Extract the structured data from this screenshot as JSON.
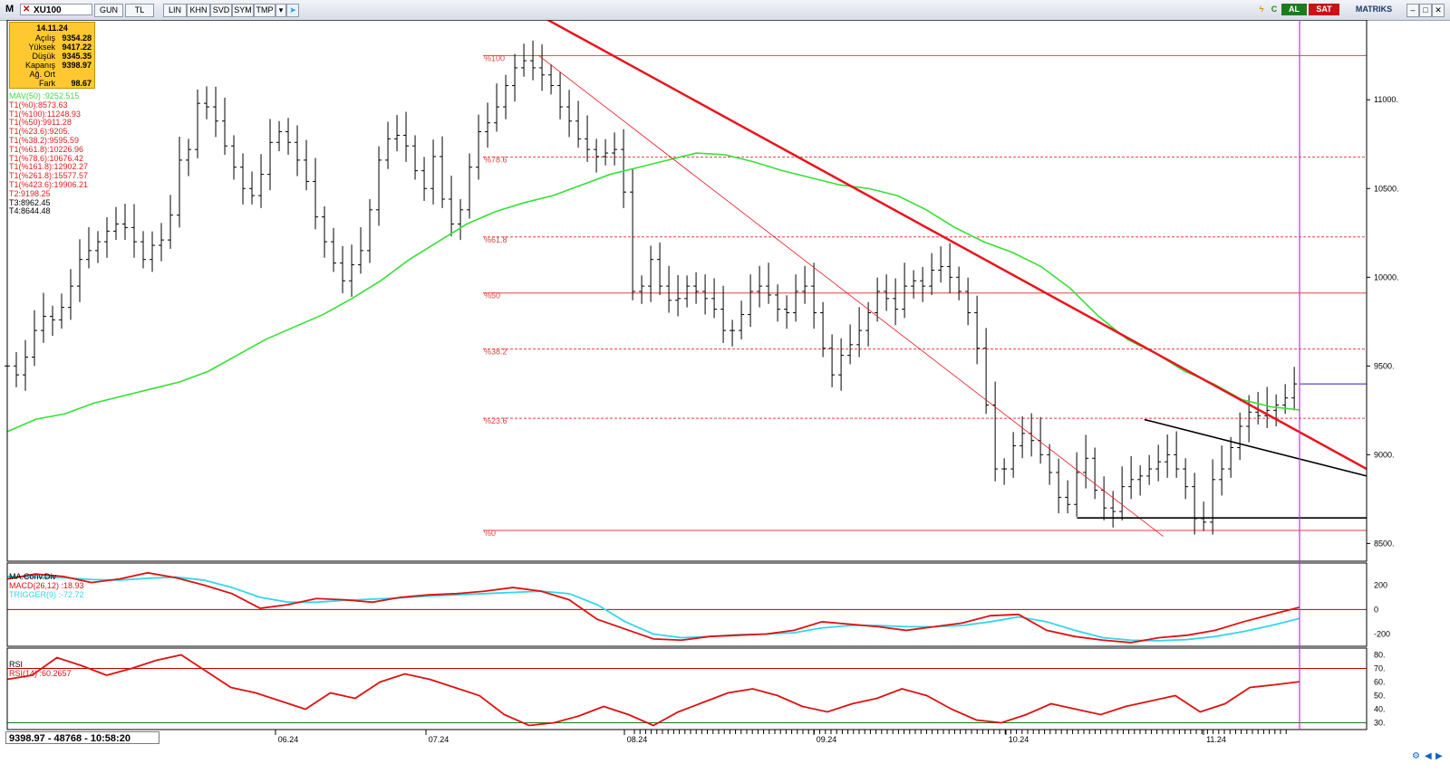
{
  "toolbar": {
    "m_label": "M",
    "symbol": "XU100",
    "buttons": [
      "GUN",
      "TL",
      "LIN",
      "KHN",
      "SVD",
      "SYM",
      "TMP"
    ],
    "al_label": "AL",
    "sat_label": "SAT",
    "matriks_label": "MATRIKS"
  },
  "infobox": {
    "date": "14.11.24",
    "rows": [
      {
        "label": "Açılış",
        "value": "9354.28"
      },
      {
        "label": "Yüksek",
        "value": "9417.22"
      },
      {
        "label": "Düşük",
        "value": "9345.35"
      },
      {
        "label": "Kapanış",
        "value": "9398.97"
      },
      {
        "label": "Ağ. Ort",
        "value": ""
      },
      {
        "label": "Fark",
        "value": "98.67"
      }
    ]
  },
  "legend": [
    {
      "text": "MAV(50)     :9252.515",
      "color": "#3cdc3c"
    },
    {
      "text": "T1(%0):8573.63",
      "color": "#e02020"
    },
    {
      "text": "T1(%100):11248.93",
      "color": "#e02020"
    },
    {
      "text": "T1(%50):9911.28",
      "color": "#e02020"
    },
    {
      "text": "T1(%23.6):9205.",
      "color": "#e02020"
    },
    {
      "text": "T1(%38.2):9595.59",
      "color": "#e02020"
    },
    {
      "text": "T1(%61.8):10226.96",
      "color": "#e02020"
    },
    {
      "text": "T1(%78.6):10676.42",
      "color": "#e02020"
    },
    {
      "text": "T1(%161.8):12902.27",
      "color": "#e02020"
    },
    {
      "text": "T1(%261.8):15577.57",
      "color": "#e02020"
    },
    {
      "text": "T1(%423.6):19906.21",
      "color": "#e02020"
    },
    {
      "text": "T2:9198.25",
      "color": "#e02020"
    },
    {
      "text": "T3:8962.45",
      "color": "#000000"
    },
    {
      "text": "T4:8644.48",
      "color": "#000000"
    }
  ],
  "macd_pane": {
    "title": "MA.Conv.Div",
    "macd_label": "MACD(26,12)    :18.93",
    "trigger_label": "TRIGGER(9)     :-72.72",
    "macd_color": "#e01010",
    "trigger_color": "#30d8e8"
  },
  "rsi_pane": {
    "title": "RSI",
    "rsi_label": "RSI(14)      :60.2657",
    "rsi_color": "#e01010"
  },
  "status": {
    "text": "9398.97 - 48768 - 10:58:20"
  },
  "colors": {
    "trendline": "#e8141e",
    "fib": "#e84040",
    "mav": "#35e035",
    "price": "#000000",
    "cursor": "#b040c8",
    "grid_black": "#000000"
  },
  "chart_data": {
    "type": "line",
    "title": "XU100",
    "x_tick_labels": [
      "06.24",
      "07.24",
      "08.24",
      "09.24",
      "10.24",
      "11.24"
    ],
    "y_ticks": [
      8500,
      9000,
      9500,
      10000,
      10500,
      11000
    ],
    "ylim": [
      8400,
      11450
    ],
    "fibonacci_levels": [
      {
        "label": "%100",
        "value": 11248.93
      },
      {
        "label": "%78.6",
        "value": 10676.42
      },
      {
        "label": "%61.8",
        "value": 10226.96
      },
      {
        "label": "%50",
        "value": 9911.28
      },
      {
        "label": "%38.2",
        "value": 9595.59
      },
      {
        "label": "%23.6",
        "value": 9205
      },
      {
        "label": "%0",
        "value": 8573.63
      }
    ],
    "last_price": 9398.97,
    "series": [
      {
        "name": "XU100",
        "style": "ohlc-bars",
        "points": [
          [
            0,
            9500
          ],
          [
            4,
            9450
          ],
          [
            8,
            9550
          ],
          [
            12,
            9700
          ],
          [
            16,
            9780
          ],
          [
            20,
            9760
          ],
          [
            24,
            9830
          ],
          [
            28,
            9950
          ],
          [
            32,
            10100
          ],
          [
            36,
            10150
          ],
          [
            40,
            10200
          ],
          [
            44,
            10260
          ],
          [
            48,
            10300
          ],
          [
            52,
            10280
          ],
          [
            56,
            10200
          ],
          [
            60,
            10100
          ],
          [
            64,
            10180
          ],
          [
            68,
            10210
          ],
          [
            72,
            10350
          ],
          [
            76,
            10660
          ],
          [
            80,
            10720
          ],
          [
            84,
            10980
          ],
          [
            88,
            10960
          ],
          [
            92,
            10880
          ],
          [
            96,
            10740
          ],
          [
            100,
            10620
          ],
          [
            104,
            10500
          ],
          [
            108,
            10460
          ],
          [
            112,
            10580
          ],
          [
            116,
            10760
          ],
          [
            120,
            10820
          ],
          [
            124,
            10760
          ],
          [
            128,
            10660
          ],
          [
            132,
            10540
          ],
          [
            136,
            10340
          ],
          [
            140,
            10200
          ],
          [
            144,
            10080
          ],
          [
            148,
            9980
          ],
          [
            152,
            10070
          ],
          [
            156,
            10150
          ],
          [
            160,
            10380
          ],
          [
            164,
            10660
          ],
          [
            168,
            10780
          ],
          [
            172,
            10800
          ],
          [
            176,
            10740
          ],
          [
            180,
            10600
          ],
          [
            184,
            10500
          ],
          [
            188,
            10680
          ],
          [
            192,
            10440
          ],
          [
            196,
            10300
          ],
          [
            200,
            10380
          ],
          [
            204,
            10620
          ],
          [
            208,
            10820
          ],
          [
            212,
            10870
          ],
          [
            216,
            10960
          ],
          [
            220,
            11080
          ],
          [
            224,
            11180
          ],
          [
            228,
            11220
          ],
          [
            232,
            11180
          ],
          [
            236,
            11140
          ],
          [
            240,
            11080
          ],
          [
            244,
            10960
          ],
          [
            248,
            10880
          ],
          [
            252,
            10780
          ],
          [
            256,
            10720
          ],
          [
            260,
            10680
          ],
          [
            264,
            10700
          ],
          [
            268,
            10720
          ],
          [
            272,
            10480
          ],
          [
            276,
            9920
          ],
          [
            280,
            9950
          ],
          [
            284,
            10100
          ],
          [
            288,
            9950
          ],
          [
            292,
            9870
          ],
          [
            296,
            9880
          ],
          [
            300,
            9950
          ],
          [
            304,
            9920
          ],
          [
            308,
            9880
          ],
          [
            312,
            9820
          ],
          [
            316,
            9700
          ],
          [
            320,
            9700
          ],
          [
            324,
            9790
          ],
          [
            328,
            9920
          ],
          [
            332,
            9950
          ],
          [
            336,
            9900
          ],
          [
            340,
            9820
          ],
          [
            344,
            9800
          ],
          [
            348,
            9920
          ],
          [
            352,
            9950
          ],
          [
            356,
            9800
          ],
          [
            360,
            9600
          ],
          [
            364,
            9450
          ],
          [
            368,
            9560
          ],
          [
            372,
            9620
          ],
          [
            376,
            9700
          ],
          [
            380,
            9800
          ],
          [
            384,
            9920
          ],
          [
            388,
            9880
          ],
          [
            392,
            9820
          ],
          [
            396,
            9950
          ],
          [
            400,
            9980
          ],
          [
            404,
            9950
          ],
          [
            408,
            10040
          ],
          [
            412,
            10060
          ],
          [
            416,
            10000
          ],
          [
            420,
            9920
          ],
          [
            424,
            9800
          ],
          [
            428,
            9600
          ],
          [
            432,
            9280
          ],
          [
            436,
            8920
          ],
          [
            440,
            8920
          ],
          [
            444,
            9050
          ],
          [
            448,
            9120
          ],
          [
            452,
            9080
          ],
          [
            456,
            9000
          ],
          [
            460,
            8900
          ],
          [
            464,
            8760
          ],
          [
            468,
            8720
          ],
          [
            472,
            8900
          ],
          [
            476,
            8980
          ],
          [
            480,
            8800
          ],
          [
            484,
            8700
          ],
          [
            488,
            8680
          ],
          [
            492,
            8820
          ],
          [
            496,
            8860
          ],
          [
            500,
            8880
          ],
          [
            504,
            8920
          ],
          [
            508,
            8960
          ],
          [
            512,
            9000
          ],
          [
            516,
            8920
          ],
          [
            520,
            8820
          ],
          [
            524,
            8640
          ],
          [
            528,
            8620
          ],
          [
            532,
            8860
          ],
          [
            536,
            8920
          ],
          [
            540,
            9040
          ],
          [
            544,
            9160
          ],
          [
            548,
            9240
          ],
          [
            552,
            9220
          ],
          [
            556,
            9250
          ],
          [
            560,
            9280
          ],
          [
            564,
            9320
          ],
          [
            568,
            9398.97
          ]
        ]
      },
      {
        "name": "MAV(50)",
        "style": "line",
        "points": [
          [
            0,
            9130
          ],
          [
            20,
            9200
          ],
          [
            40,
            9230
          ],
          [
            60,
            9290
          ],
          [
            80,
            9330
          ],
          [
            100,
            9370
          ],
          [
            120,
            9410
          ],
          [
            140,
            9470
          ],
          [
            160,
            9560
          ],
          [
            180,
            9650
          ],
          [
            200,
            9720
          ],
          [
            220,
            9790
          ],
          [
            240,
            9880
          ],
          [
            260,
            9980
          ],
          [
            280,
            10100
          ],
          [
            300,
            10200
          ],
          [
            320,
            10300
          ],
          [
            340,
            10370
          ],
          [
            360,
            10420
          ],
          [
            380,
            10460
          ],
          [
            400,
            10520
          ],
          [
            420,
            10580
          ],
          [
            440,
            10620
          ],
          [
            460,
            10660
          ],
          [
            480,
            10700
          ],
          [
            500,
            10690
          ],
          [
            520,
            10650
          ],
          [
            540,
            10600
          ],
          [
            560,
            10560
          ],
          [
            580,
            10520
          ],
          [
            600,
            10500
          ],
          [
            620,
            10460
          ],
          [
            640,
            10380
          ],
          [
            660,
            10280
          ],
          [
            680,
            10200
          ],
          [
            700,
            10140
          ],
          [
            720,
            10060
          ],
          [
            740,
            9940
          ],
          [
            760,
            9780
          ],
          [
            780,
            9650
          ],
          [
            800,
            9570
          ],
          [
            820,
            9470
          ],
          [
            840,
            9400
          ],
          [
            860,
            9310
          ],
          [
            880,
            9270
          ],
          [
            900,
            9252.515
          ]
        ]
      }
    ],
    "macd": {
      "ylim": [
        -300,
        380
      ],
      "ticks": [
        200,
        0,
        -200
      ],
      "macd_values": [
        250,
        290,
        270,
        220,
        250,
        300,
        260,
        200,
        130,
        10,
        40,
        90,
        80,
        60,
        100,
        120,
        130,
        150,
        180,
        150,
        80,
        -80,
        -160,
        -240,
        -250,
        -220,
        -210,
        -200,
        -170,
        -100,
        -120,
        -140,
        -170,
        -140,
        -110,
        -50,
        -40,
        -170,
        -220,
        -250,
        -270,
        -230,
        -210,
        -170,
        -100,
        -40,
        18.93
      ],
      "trigger_values": [
        270,
        265,
        260,
        245,
        240,
        255,
        265,
        240,
        180,
        100,
        60,
        60,
        75,
        85,
        95,
        110,
        120,
        130,
        140,
        150,
        130,
        40,
        -100,
        -200,
        -230,
        -220,
        -205,
        -200,
        -190,
        -150,
        -130,
        -130,
        -140,
        -140,
        -130,
        -100,
        -60,
        -100,
        -170,
        -230,
        -250,
        -255,
        -245,
        -220,
        -180,
        -130,
        -72.72
      ]
    },
    "rsi": {
      "ylim": [
        25,
        85
      ],
      "ticks": [
        80,
        70,
        60,
        50,
        40,
        30
      ],
      "levels": [
        70,
        30
      ],
      "values": [
        62,
        65,
        78,
        72,
        65,
        70,
        76,
        80,
        68,
        56,
        52,
        46,
        40,
        52,
        48,
        60,
        66,
        62,
        56,
        50,
        36,
        28,
        30,
        35,
        42,
        36,
        28,
        38,
        45,
        52,
        55,
        50,
        42,
        38,
        44,
        48,
        55,
        50,
        40,
        32,
        30,
        36,
        44,
        40,
        36,
        42,
        46,
        50,
        38,
        44,
        56,
        58,
        60.2657
      ]
    }
  }
}
